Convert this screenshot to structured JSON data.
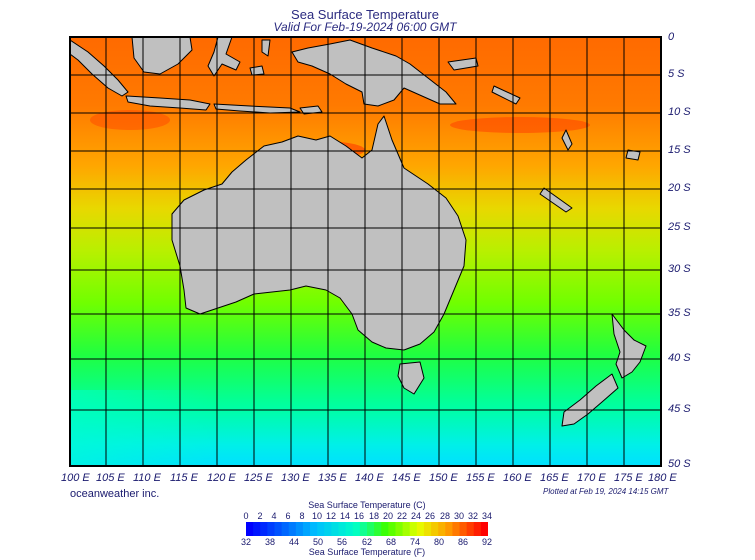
{
  "title": "Sea Surface Temperature",
  "subtitle": "Valid For Feb-19-2024 06:00 GMT",
  "credit": "oceanweather inc.",
  "plotted": "Plotted at Feb 19, 2024 14:15 GMT",
  "longitude_labels": [
    "100 E",
    "105 E",
    "110 E",
    "115 E",
    "120 E",
    "125 E",
    "130 E",
    "135 E",
    "140 E",
    "145 E",
    "150 E",
    "155 E",
    "160 E",
    "165 E",
    "170 E",
    "175 E",
    "180 E"
  ],
  "latitude_labels": [
    "0",
    "5 S",
    "10 S",
    "15 S",
    "20 S",
    "25 S",
    "30 S",
    "35 S",
    "40 S",
    "45 S",
    "50 S"
  ],
  "colorbar": {
    "celsius_title": "Sea Surface Temperature (C)",
    "fahrenheit_title": "Sea Surface Temperature (F)",
    "celsius_ticks": [
      "0",
      "2",
      "4",
      "6",
      "8",
      "10",
      "12",
      "14",
      "16",
      "18",
      "20",
      "22",
      "24",
      "26",
      "28",
      "30",
      "32",
      "34"
    ],
    "fahrenheit_ticks": [
      "32",
      "38",
      "44",
      "50",
      "56",
      "62",
      "68",
      "74",
      "80",
      "86",
      "92"
    ]
  },
  "colors": {
    "land": "#c0c0c0",
    "hot": "#ff7000",
    "warm": "#ffa000",
    "mid": "#70ff00",
    "cool": "#00ffa0",
    "cold": "#00f0ff",
    "text": "#1a1a6e"
  }
}
